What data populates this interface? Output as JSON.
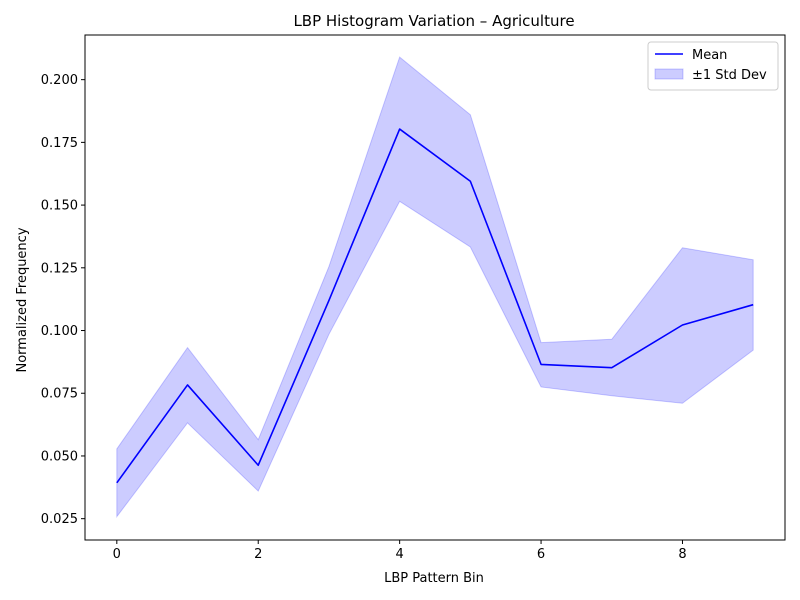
{
  "chart_data": {
    "type": "line",
    "title": "LBP Histogram Variation – Agriculture",
    "xlabel": "LBP Pattern Bin",
    "ylabel": "Normalized Frequency",
    "xlim": [
      -0.45,
      9.45
    ],
    "ylim": [
      0.0165,
      0.2178
    ],
    "x": [
      0,
      1,
      2,
      3,
      4,
      5,
      6,
      7,
      8,
      9
    ],
    "x_ticks": [
      0,
      2,
      4,
      6,
      8
    ],
    "x_tick_labels": [
      "0",
      "2",
      "4",
      "6",
      "8"
    ],
    "y_ticks": [
      0.025,
      0.05,
      0.075,
      0.1,
      0.125,
      0.15,
      0.175,
      0.2
    ],
    "y_tick_labels": [
      "0.025",
      "0.050",
      "0.075",
      "0.100",
      "0.125",
      "0.150",
      "0.175",
      "0.200"
    ],
    "series": [
      {
        "name": "Mean",
        "kind": "line",
        "color": "#0000ff",
        "values": [
          0.0393,
          0.0783,
          0.0463,
          0.112,
          0.1803,
          0.1595,
          0.0865,
          0.0852,
          0.1022,
          0.1103
        ]
      },
      {
        "name": "±1 Std Dev",
        "kind": "band",
        "color": "#0000ff",
        "opacity": 0.2,
        "lower": [
          0.0258,
          0.0632,
          0.036,
          0.0985,
          0.1515,
          0.1333,
          0.0775,
          0.074,
          0.071,
          0.0922
        ],
        "upper": [
          0.0528,
          0.0932,
          0.0565,
          0.1255,
          0.209,
          0.186,
          0.0952,
          0.0965,
          0.133,
          0.1282
        ]
      }
    ],
    "grid": false,
    "legend": {
      "placement": "top-right",
      "entries": [
        "Mean",
        "±1 Std Dev"
      ]
    }
  }
}
